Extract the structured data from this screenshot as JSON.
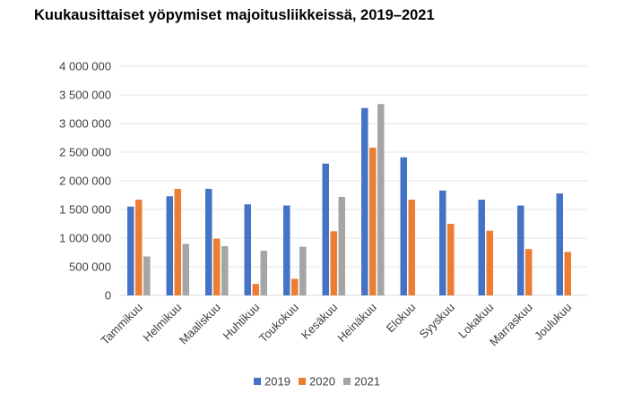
{
  "chart_data": {
    "type": "bar",
    "title": "Kuukausittaiset yöpymiset majoitusliikkeissä, 2019–2021",
    "categories": [
      "Tammikuu",
      "Helmikuu",
      "Maaliskuu",
      "Huhtikuu",
      "Toukokuu",
      "Kesäkuu",
      "Heinäkuu",
      "Elokuu",
      "Syyskuu",
      "Lokakuu",
      "Marraskuu",
      "Joulukuu"
    ],
    "series": [
      {
        "name": "2019",
        "color": "#4472C4",
        "values": [
          1550000,
          1730000,
          1860000,
          1590000,
          1570000,
          2300000,
          3270000,
          2410000,
          1830000,
          1670000,
          1570000,
          1780000
        ]
      },
      {
        "name": "2020",
        "color": "#ED7D31",
        "values": [
          1670000,
          1860000,
          990000,
          200000,
          290000,
          1120000,
          2580000,
          1670000,
          1250000,
          1130000,
          810000,
          760000
        ]
      },
      {
        "name": "2021",
        "color": "#A5A5A5",
        "values": [
          680000,
          900000,
          860000,
          780000,
          850000,
          1720000,
          3340000,
          null,
          null,
          null,
          null,
          null
        ]
      }
    ],
    "ylim": [
      0,
      4000000
    ],
    "yticks": [
      0,
      500000,
      1000000,
      1500000,
      2000000,
      2500000,
      3000000,
      3500000,
      4000000
    ],
    "ytick_labels": [
      "0",
      "500 000",
      "1 000 000",
      "1 500 000",
      "2 000 000",
      "2 500 000",
      "3 000 000",
      "3 500 000",
      "4 000 000"
    ],
    "grid": true,
    "legend_position": "bottom",
    "xlabel": "",
    "ylabel": ""
  }
}
